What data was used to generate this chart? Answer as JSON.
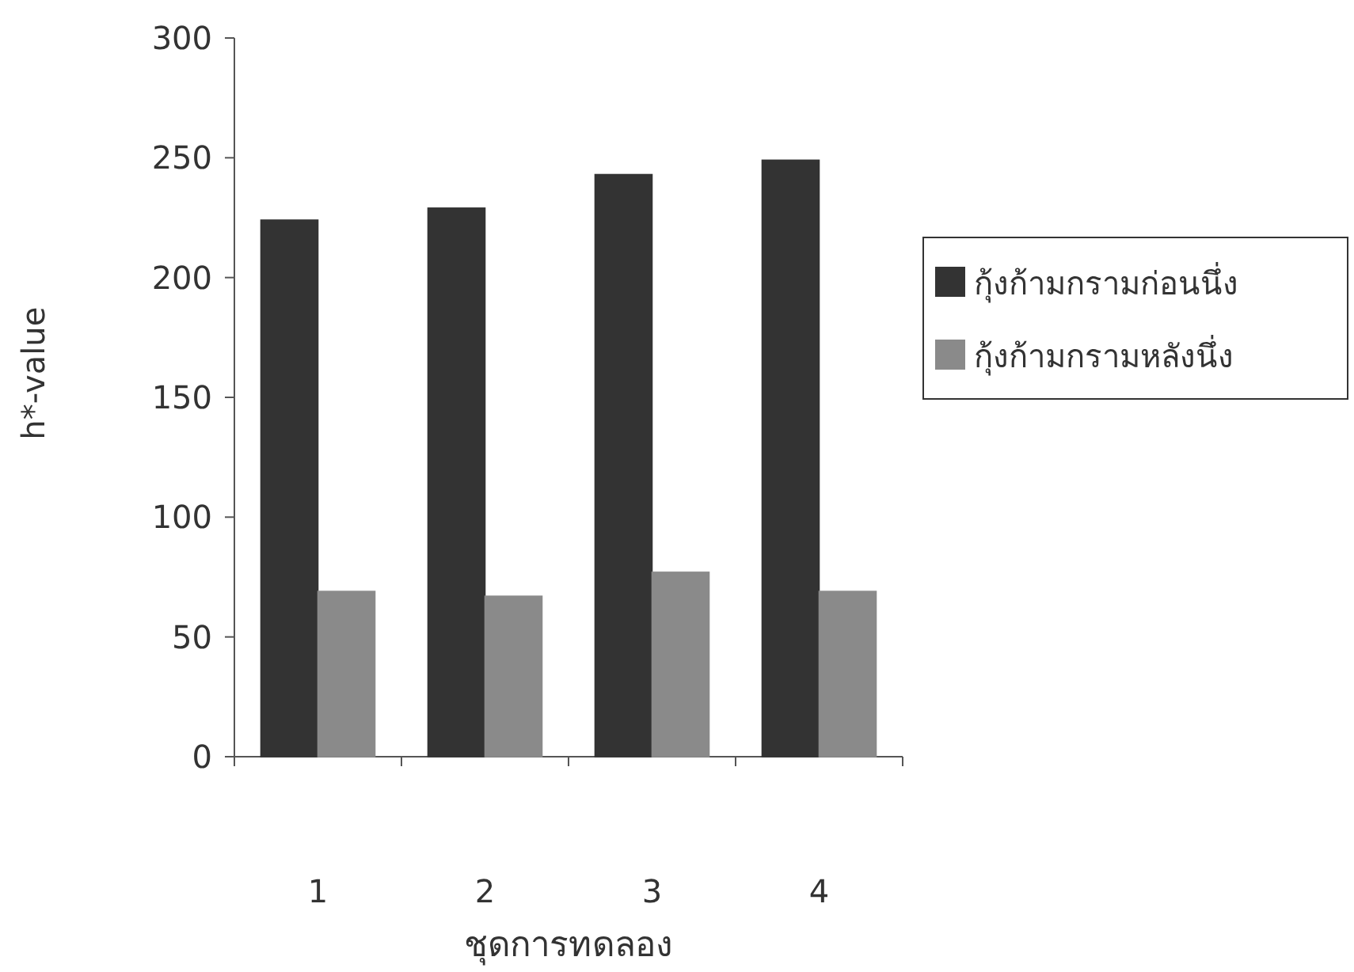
{
  "chart_data": {
    "type": "bar",
    "xlabel": "ชุดการทดลอง",
    "ylabel": "h*-value",
    "categories": [
      "1",
      "2",
      "3",
      "4"
    ],
    "series": [
      {
        "name": "กุ้งก้ามกรามก่อนนึ่ง",
        "color": "#333333",
        "values": [
          224,
          229,
          243,
          249
        ]
      },
      {
        "name": "กุ้งก้ามกรามหลังนึ่ง",
        "color": "#8a8a8a",
        "values": [
          69,
          67,
          77,
          69
        ]
      }
    ],
    "ylim": [
      0,
      300
    ],
    "yticks": [
      0,
      50,
      100,
      150,
      200,
      250,
      300
    ],
    "legend": "right"
  }
}
